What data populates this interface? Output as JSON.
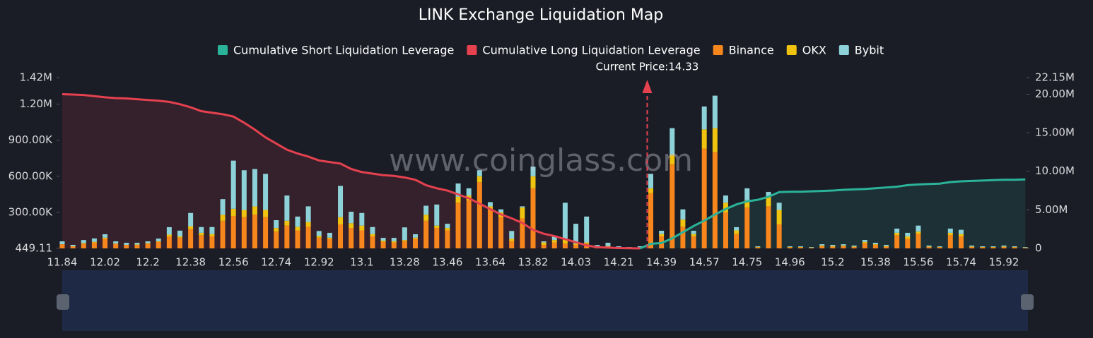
{
  "chart_data": {
    "type": "bar",
    "title": "LINK Exchange Liquidation Map",
    "watermark": "www.coinglass.com",
    "current_price": {
      "value": 14.33,
      "label": "Current Price:14.33"
    },
    "categories": [
      "11.84",
      null,
      null,
      null,
      "12.02",
      null,
      null,
      null,
      "12.2",
      null,
      null,
      null,
      "12.38",
      null,
      null,
      null,
      "12.56",
      null,
      null,
      null,
      "12.74",
      null,
      null,
      null,
      "12.92",
      null,
      null,
      null,
      "13.1",
      null,
      null,
      null,
      "13.28",
      null,
      null,
      null,
      "13.46",
      null,
      null,
      null,
      "13.64",
      null,
      null,
      null,
      "13.82",
      null,
      null,
      null,
      "14.03",
      null,
      null,
      null,
      "14.21",
      null,
      null,
      null,
      "14.39",
      null,
      null,
      null,
      "14.57",
      null,
      null,
      null,
      "14.75",
      null,
      null,
      null,
      "14.96",
      null,
      null,
      null,
      "15.2",
      null,
      null,
      null,
      "15.38",
      null,
      null,
      null,
      "15.56",
      null,
      null,
      null,
      "15.74",
      null,
      null,
      null,
      "15.92",
      null,
      null
    ],
    "series": [
      {
        "name": "Cumulative Short Liquidation Leverage",
        "color": "#2bb39a",
        "axis": "y2",
        "values": [
          null,
          null,
          null,
          null,
          null,
          null,
          null,
          null,
          null,
          null,
          null,
          null,
          null,
          null,
          null,
          null,
          null,
          null,
          null,
          null,
          null,
          null,
          null,
          null,
          null,
          null,
          null,
          null,
          null,
          null,
          null,
          null,
          null,
          null,
          null,
          null,
          null,
          null,
          null,
          null,
          null,
          null,
          null,
          null,
          null,
          null,
          null,
          null,
          null,
          null,
          null,
          null,
          null,
          null,
          0,
          600000,
          700000,
          1300000,
          2100000,
          2900000,
          3600000,
          4400000,
          5100000,
          5700000,
          6100000,
          6300000,
          6700000,
          7300000,
          7350000,
          7350000,
          7400000,
          7450000,
          7500000,
          7600000,
          7650000,
          7700000,
          7800000,
          7900000,
          8000000,
          8200000,
          8300000,
          8350000,
          8400000,
          8600000,
          8700000,
          8750000,
          8800000,
          8850000,
          8900000,
          8900000,
          8950000
        ]
      },
      {
        "name": "Cumulative Long Liquidation Leverage",
        "color": "#e5414f",
        "axis": "y2",
        "values": [
          20000000,
          19950000,
          19900000,
          19750000,
          19600000,
          19500000,
          19450000,
          19350000,
          19250000,
          19150000,
          19000000,
          18700000,
          18300000,
          17800000,
          17600000,
          17400000,
          17100000,
          16300000,
          15400000,
          14400000,
          13600000,
          12800000,
          12300000,
          11900000,
          11400000,
          11200000,
          11000000,
          10300000,
          9900000,
          9700000,
          9500000,
          9400000,
          9200000,
          8900000,
          8200000,
          7800000,
          7500000,
          7000000,
          6500000,
          5800000,
          5100000,
          4400000,
          3900000,
          3300000,
          2400000,
          1900000,
          1600000,
          1200000,
          800000,
          400000,
          150000,
          100000,
          50000,
          20000,
          0,
          null,
          null,
          null,
          null,
          null,
          null,
          null,
          null,
          null,
          null,
          null,
          null,
          null,
          null,
          null,
          null,
          null,
          null,
          null,
          null,
          null,
          null,
          null,
          null,
          null,
          null,
          null,
          null,
          null,
          null,
          null,
          null,
          null,
          null,
          null,
          null
        ]
      },
      {
        "name": "Binance",
        "color": "#f7861c",
        "values": [
          35000,
          18000,
          40000,
          50000,
          80000,
          40000,
          30000,
          30000,
          40000,
          55000,
          100000,
          90000,
          160000,
          110000,
          100000,
          230000,
          270000,
          260000,
          280000,
          260000,
          140000,
          190000,
          150000,
          180000,
          90000,
          80000,
          200000,
          170000,
          150000,
          100000,
          55000,
          50000,
          60000,
          80000,
          230000,
          170000,
          150000,
          380000,
          400000,
          550000,
          320000,
          260000,
          60000,
          250000,
          500000,
          30000,
          50000,
          40000,
          30000,
          40000,
          10000,
          15000,
          5000,
          5000,
          8000,
          460000,
          100000,
          700000,
          180000,
          100000,
          830000,
          800000,
          300000,
          120000,
          340000,
          10000,
          350000,
          200000,
          10000,
          10000,
          5000,
          20000,
          15000,
          20000,
          12000,
          45000,
          30000,
          15000,
          110000,
          80000,
          120000,
          12000,
          10000,
          110000,
          100000,
          12000,
          10000,
          10000,
          12000,
          10000,
          5000
        ]
      },
      {
        "name": "OKX",
        "color": "#f0c30f",
        "values": [
          0,
          0,
          5000,
          5000,
          10000,
          0,
          0,
          3000,
          5000,
          5000,
          15000,
          10000,
          25000,
          20000,
          20000,
          50000,
          60000,
          60000,
          70000,
          60000,
          30000,
          40000,
          30000,
          40000,
          15000,
          10000,
          60000,
          40000,
          40000,
          20000,
          10000,
          10000,
          10000,
          10000,
          50000,
          20000,
          20000,
          50000,
          40000,
          50000,
          30000,
          40000,
          20000,
          90000,
          100000,
          20000,
          20000,
          40000,
          10000,
          10000,
          5000,
          5000,
          3000,
          2000,
          2000,
          40000,
          20000,
          80000,
          60000,
          20000,
          160000,
          200000,
          80000,
          30000,
          60000,
          3000,
          80000,
          120000,
          3000,
          3000,
          3000,
          5000,
          5000,
          5000,
          4000,
          10000,
          5000,
          5000,
          20000,
          20000,
          20000,
          4000,
          3000,
          20000,
          20000,
          4000,
          3000,
          3000,
          4000,
          3000,
          3000
        ]
      },
      {
        "name": "Bybit",
        "color": "#8dd2d8",
        "values": [
          24000,
          12000,
          25000,
          28000,
          28000,
          19000,
          17000,
          14000,
          14000,
          22000,
          62000,
          48000,
          110000,
          48000,
          58000,
          130000,
          400000,
          330000,
          310000,
          300000,
          65000,
          210000,
          85000,
          130000,
          40000,
          40000,
          260000,
          95000,
          105000,
          58000,
          23000,
          28000,
          105000,
          28000,
          75000,
          175000,
          35000,
          110000,
          60000,
          50000,
          35000,
          25000,
          65000,
          10000,
          80000,
          9000,
          36000,
          300000,
          165000,
          215000,
          14000,
          27000,
          10000,
          5000,
          8000,
          120000,
          27000,
          220000,
          85000,
          27000,
          190000,
          270000,
          60000,
          27000,
          100000,
          5000,
          40000,
          60000,
          5000,
          5000,
          4000,
          10000,
          10000,
          10000,
          8000,
          16000,
          12000,
          10000,
          35000,
          30000,
          50000,
          8000,
          5000,
          35000,
          35000,
          8000,
          5000,
          5000,
          8000,
          5000,
          4000
        ]
      }
    ],
    "ylim": [
      449.11,
      1420000
    ],
    "yticks": [
      449.11,
      {
        "value": 300000,
        "label": "300.00K"
      },
      {
        "value": 600000,
        "label": "600.00K"
      },
      {
        "value": 900000,
        "label": "900.00K"
      },
      {
        "value": 1200000,
        "label": "1.20M"
      },
      {
        "value": 1420000,
        "label": "1.42M"
      }
    ],
    "y2lim": [
      0,
      22150000
    ],
    "y2ticks": [
      0,
      {
        "value": 5000000,
        "label": "5.00M"
      },
      {
        "value": 10000000,
        "label": "10.00M"
      },
      {
        "value": 15000000,
        "label": "15.00M"
      },
      {
        "value": 20000000,
        "label": "20.00M"
      },
      {
        "value": 22150000,
        "label": "22.15M"
      }
    ],
    "grid": false
  }
}
